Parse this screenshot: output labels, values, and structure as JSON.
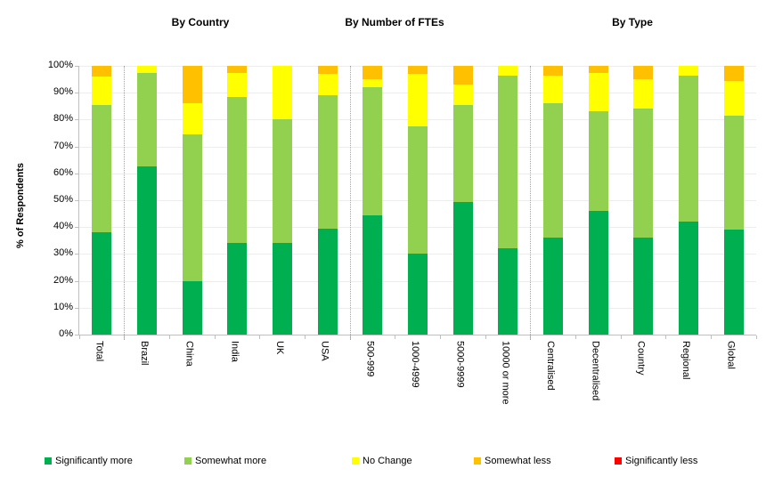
{
  "group_titles": {
    "country": "By Country",
    "ftes": "By Number of FTEs",
    "type": "By Type"
  },
  "y_axis": {
    "title": "% of Respondents",
    "tick_labels": [
      "0%",
      "10%",
      "20%",
      "30%",
      "40%",
      "50%",
      "60%",
      "70%",
      "80%",
      "90%",
      "100%"
    ]
  },
  "legend": [
    {
      "label": "Significantly more",
      "color": "#00B050"
    },
    {
      "label": "Somewhat more",
      "color": "#92D050"
    },
    {
      "label": "No Change",
      "color": "#FFFF00"
    },
    {
      "label": "Somewhat less",
      "color": "#FFC000"
    },
    {
      "label": "Significantly less",
      "color": "#FF0000"
    }
  ],
  "chart_data": {
    "type": "bar",
    "stacked": true,
    "title": "",
    "xlabel": "",
    "ylabel": "% of Respondents",
    "ylim": [
      0,
      100
    ],
    "grid": true,
    "legend_position": "bottom",
    "group_titles": [
      "By Country",
      "By Number of FTEs",
      "By Type"
    ],
    "categories": [
      "Total",
      "Brazil",
      "China",
      "India",
      "UK",
      "USA",
      "500-999",
      "1000-4999",
      "5000-9999",
      "10000 or more",
      "Centralised",
      "Decentralised",
      "Country",
      "Regional",
      "Global"
    ],
    "separators_after": [
      0,
      5,
      9
    ],
    "series": [
      {
        "name": "Significantly more",
        "color": "#00B050",
        "values": [
          38,
          62.5,
          20,
          34,
          34,
          39.5,
          44.5,
          30,
          49.5,
          32,
          36,
          46,
          36,
          42,
          39
        ]
      },
      {
        "name": "Somewhat more",
        "color": "#92D050",
        "values": [
          47.5,
          35,
          54.5,
          54.5,
          46,
          49.5,
          47.5,
          47.5,
          36,
          64.5,
          50,
          37,
          48,
          54.5,
          42.5
        ]
      },
      {
        "name": "No Change",
        "color": "#FFFF00",
        "values": [
          10.5,
          2.5,
          11.5,
          9,
          20,
          8,
          3,
          19.5,
          7.5,
          3.5,
          10.5,
          14.5,
          11,
          3.5,
          13
        ]
      },
      {
        "name": "Somewhat less",
        "color": "#FFC000",
        "values": [
          4,
          0,
          14,
          2.5,
          0,
          3,
          5,
          3,
          7,
          0,
          3.5,
          2.5,
          5,
          0,
          5.5
        ]
      },
      {
        "name": "Significantly less",
        "color": "#FF0000",
        "values": [
          0,
          0,
          0,
          0,
          0,
          0,
          0,
          0,
          0,
          0,
          0,
          0,
          0,
          0,
          0
        ]
      }
    ]
  }
}
